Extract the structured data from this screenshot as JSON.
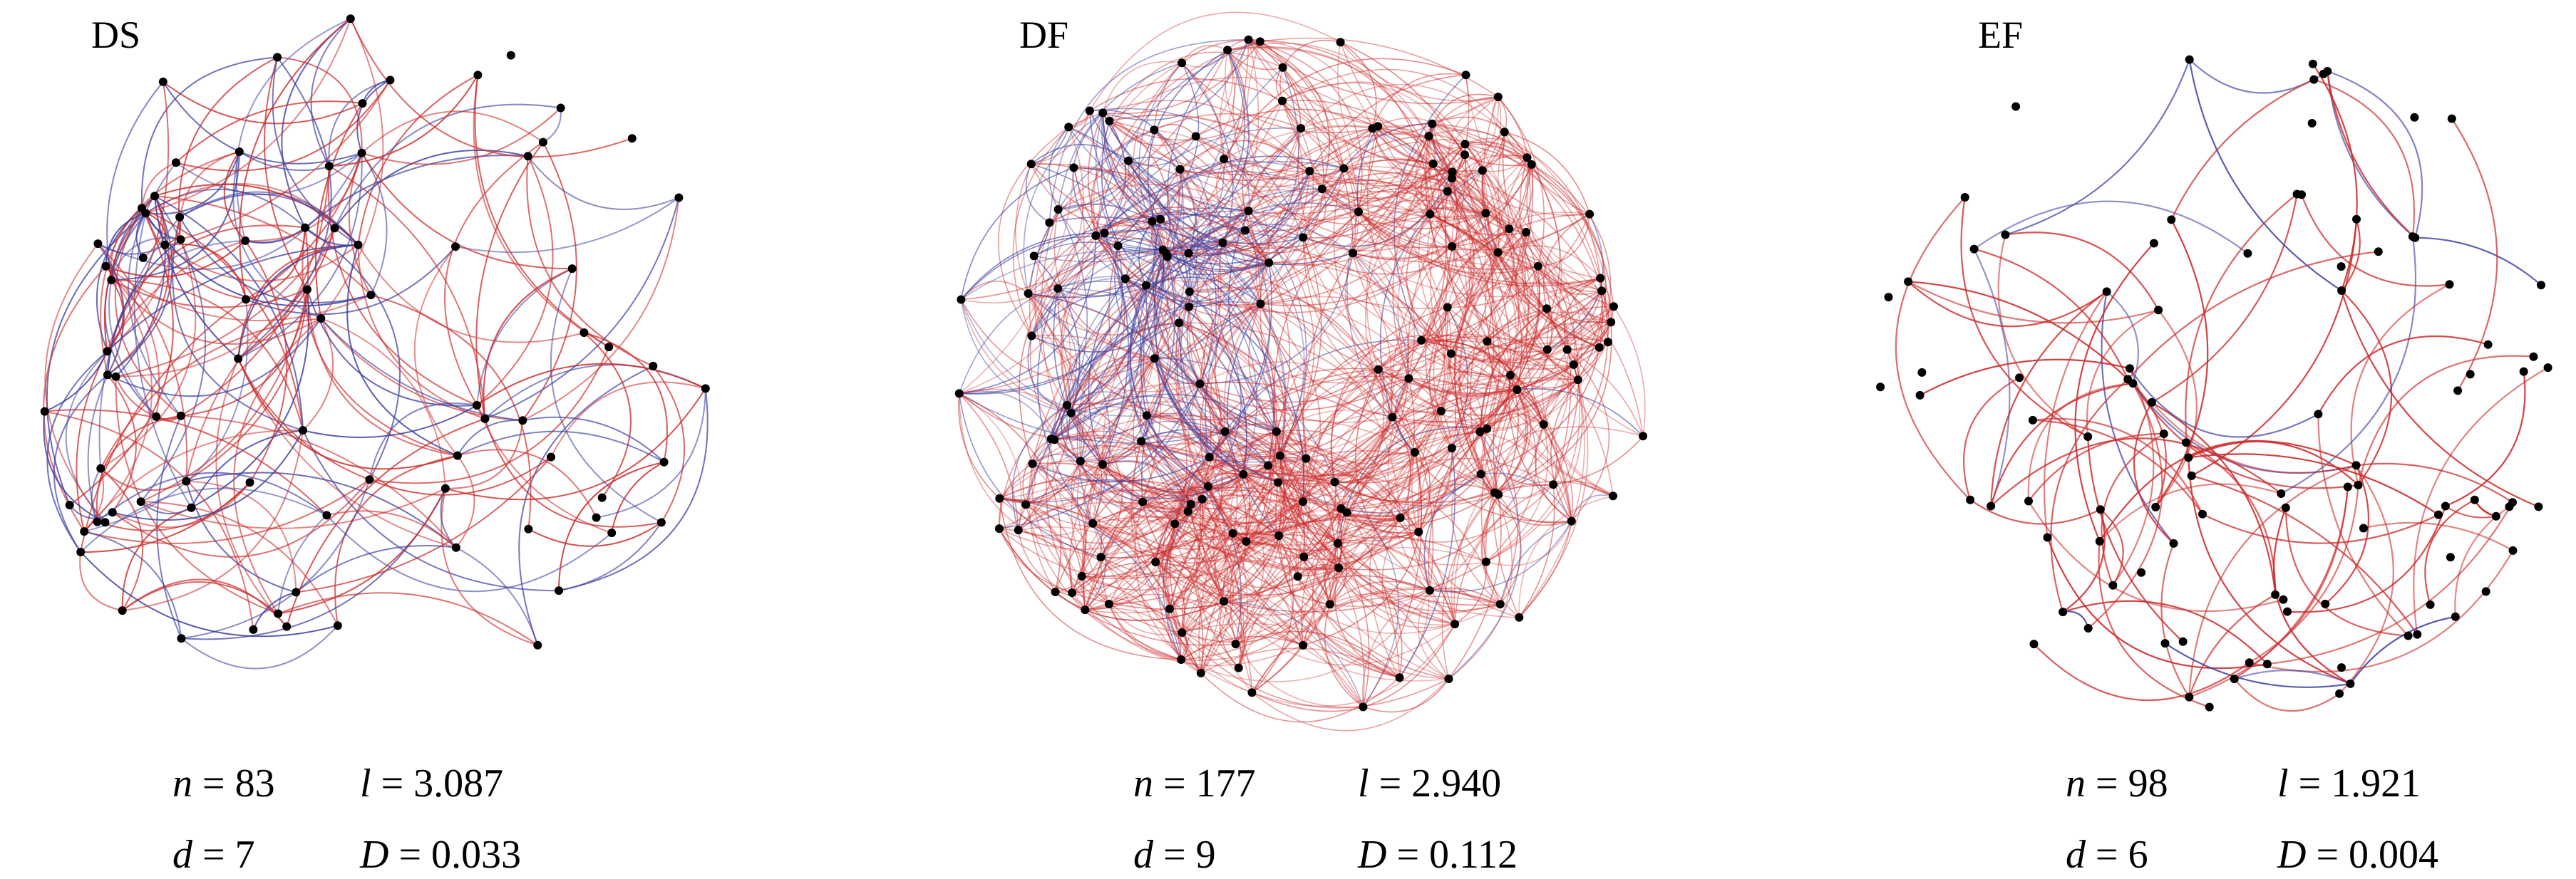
{
  "colors": {
    "positive": "#cc2a2a",
    "negative": "#3b3f9e",
    "node": "#000000"
  },
  "panels": [
    {
      "id": "ds",
      "title": "DS",
      "node_count": 83,
      "edge_count": 250,
      "negative_share": 0.42,
      "seed": 11,
      "stats": {
        "n": "83",
        "l": "3.087",
        "d": "7",
        "D": "0.033"
      }
    },
    {
      "id": "df",
      "title": "DF",
      "node_count": 177,
      "edge_count": 1400,
      "negative_share": 0.18,
      "seed": 29,
      "stats": {
        "n": "177",
        "l": "2.940",
        "d": "9",
        "D": "0.112"
      }
    },
    {
      "id": "ef",
      "title": "EF",
      "node_count": 98,
      "edge_count": 105,
      "negative_share": 0.17,
      "seed": 53,
      "stats": {
        "n": "98",
        "l": "1.921",
        "d": "6",
        "D": "0.004"
      }
    }
  ]
}
